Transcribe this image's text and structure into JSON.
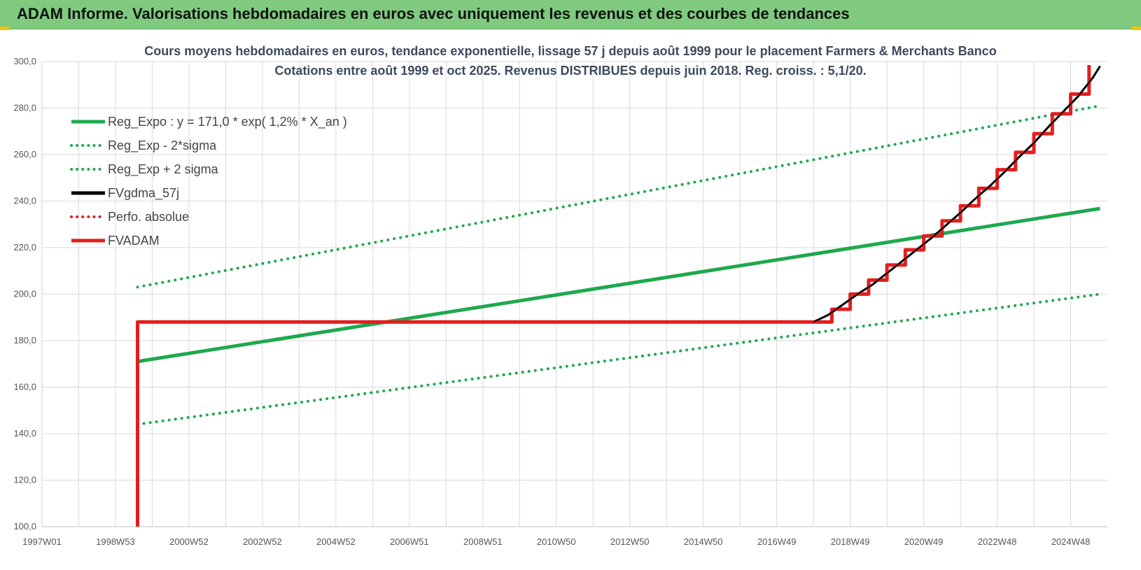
{
  "header": {
    "title": "ADAM Informe. Valorisations hebdomadaires en euros avec uniquement les revenus et des courbes de tendances"
  },
  "colors": {
    "header_bg": "#7fca7f",
    "reg_green": "#1fa84f",
    "black": "#000000",
    "red": "#e41e1e",
    "grid": "#d9d9d9",
    "accent_corner": "#f2c200"
  },
  "chart_data": {
    "type": "line",
    "title": "Cours moyens hebdomadaires en euros, tendance exponentielle, lissage 57 j depuis août 1999 pour le placement Farmers & Merchants Banco",
    "subtitle": "Cotations entre août 1999 et oct 2025. Revenus DISTRIBUES depuis juin 2018. Reg. croiss. : 5,1/20.",
    "xlabel": "",
    "ylabel": "",
    "ylim": [
      100,
      300
    ],
    "yticks": [
      "300,0",
      "280,0",
      "260,0",
      "240,0",
      "220,0",
      "200,0",
      "180,0",
      "160,0",
      "140,0",
      "120,0",
      "100,0"
    ],
    "xlim": [
      1997.0,
      2026.0
    ],
    "xticks": [
      "1997W01",
      "1998W53",
      "2000W52",
      "2002W52",
      "2004W52",
      "2006W51",
      "2008W51",
      "2010W50",
      "2012W50",
      "2014W50",
      "2016W49",
      "2018W49",
      "2020W49",
      "2022W48",
      "2024W48"
    ],
    "grid": true,
    "legend_position": "top-left",
    "series": [
      {
        "name": "Reg_Expo : y = 171,0 * exp( 1,2% *  X_an )",
        "style": "solid",
        "color": "#1fa84f",
        "x": [
          1999.6,
          2025.8
        ],
        "y": [
          171.0,
          236.8
        ]
      },
      {
        "name": "Reg_Exp - 2*sigma",
        "style": "dotted",
        "color": "#1fa84f",
        "x": [
          1999.6,
          2025.8
        ],
        "y": [
          144.0,
          200.0
        ]
      },
      {
        "name": "Reg_Exp + 2 sigma",
        "style": "dotted",
        "color": "#1fa84f",
        "x": [
          1999.6,
          2025.8
        ],
        "y": [
          203.0,
          281.0
        ]
      },
      {
        "name": "FVgdma_57j",
        "style": "solid",
        "color": "#000000",
        "x": [
          1999.6,
          2018.0,
          2018.4,
          2018.8,
          2019.2,
          2019.6,
          2020.0,
          2020.4,
          2020.8,
          2021.2,
          2021.6,
          2022.0,
          2022.4,
          2022.8,
          2023.2,
          2023.6,
          2024.0,
          2024.4,
          2024.8,
          2025.2,
          2025.6,
          2025.8
        ],
        "y": [
          188.0,
          188.0,
          191.0,
          195.5,
          200.0,
          204.0,
          209.0,
          214.0,
          219.0,
          224.0,
          229.5,
          235.0,
          241.0,
          246.5,
          252.5,
          259.0,
          265.0,
          272.0,
          278.5,
          285.0,
          293.0,
          298.0
        ]
      },
      {
        "name": "Perfo. absolue",
        "style": "dotted",
        "color": "#e41e1e",
        "x": [],
        "y": []
      },
      {
        "name": "FVADAM",
        "style": "solid",
        "color": "#e41e1e",
        "x": [
          1999.6,
          1999.6,
          2018.0,
          2018.5,
          2019.0,
          2019.5,
          2020.0,
          2020.5,
          2021.0,
          2021.5,
          2022.0,
          2022.5,
          2023.0,
          2023.5,
          2024.0,
          2024.5,
          2025.0,
          2025.5
        ],
        "y": [
          100.0,
          188.0,
          188.0,
          193.5,
          200.0,
          206.0,
          212.5,
          219.0,
          225.0,
          231.5,
          238.0,
          245.5,
          253.5,
          261.0,
          269.0,
          277.5,
          286.0,
          298.5
        ]
      }
    ]
  }
}
